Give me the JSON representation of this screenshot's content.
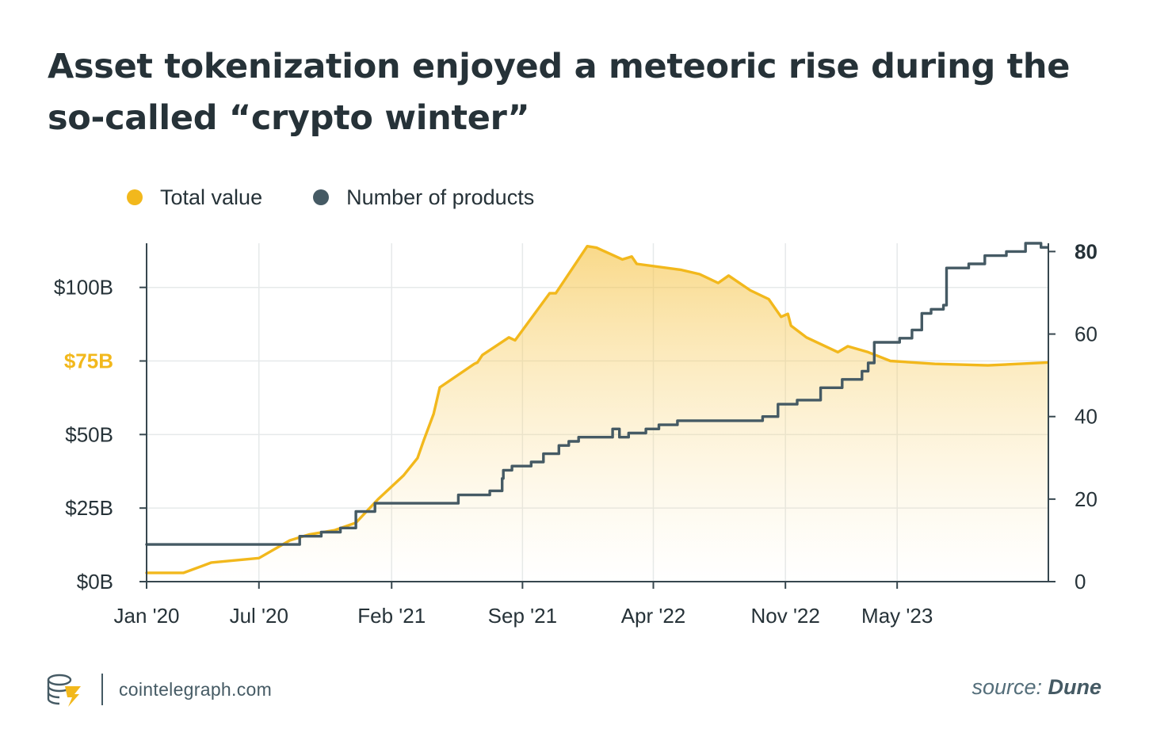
{
  "header": {
    "title": "Asset tokenization enjoyed a meteoric rise during the so-called “crypto winter”"
  },
  "legend": {
    "items": [
      {
        "label": "Total value",
        "color": "#f2b81c"
      },
      {
        "label": "Number of products",
        "color": "#455a64"
      }
    ]
  },
  "footer": {
    "brand": "cointelegraph.com",
    "source_prefix": "source:",
    "source_name": "Dune"
  },
  "chart_data": {
    "type": "line",
    "title": "Asset tokenization enjoyed a meteoric rise during the so-called “crypto winter”",
    "xlabel": "",
    "ylabel": "",
    "x_axis": {
      "type": "date",
      "range": [
        "2020-01-01",
        "2024-01-01"
      ],
      "ticks": [
        {
          "date": "2020-01-01",
          "label": "Jan '20"
        },
        {
          "date": "2020-07-01",
          "label": "Jul '20"
        },
        {
          "date": "2021-02-01",
          "label": "Feb '21"
        },
        {
          "date": "2021-09-01",
          "label": "Sep '21"
        },
        {
          "date": "2022-04-01",
          "label": "Apr '22"
        },
        {
          "date": "2022-11-01",
          "label": "Nov '22"
        },
        {
          "date": "2023-05-01",
          "label": "May '23"
        }
      ]
    },
    "y_left": {
      "range": [
        0,
        115
      ],
      "ticks": [
        {
          "value": 0,
          "label": "$0B"
        },
        {
          "value": 25,
          "label": "$25B"
        },
        {
          "value": 50,
          "label": "$50B"
        },
        {
          "value": 75,
          "label": "$75B",
          "highlight": true
        },
        {
          "value": 100,
          "label": "$100B"
        }
      ],
      "highlight_color": "#f2b81c"
    },
    "y_right": {
      "range": [
        0,
        82
      ],
      "ticks": [
        {
          "value": 0,
          "label": "0"
        },
        {
          "value": 20,
          "label": "20"
        },
        {
          "value": 40,
          "label": "40"
        },
        {
          "value": 60,
          "label": "60"
        },
        {
          "value": 80,
          "label": "80",
          "bold": true
        }
      ]
    },
    "grid": true,
    "legend_position": "top-left",
    "series": [
      {
        "name": "Total value",
        "axis": "left",
        "color": "#f2b81c",
        "fill": true,
        "points": [
          [
            "2020-01-01",
            3
          ],
          [
            "2020-03-01",
            3
          ],
          [
            "2020-04-15",
            6.5
          ],
          [
            "2020-07-01",
            8
          ],
          [
            "2020-08-20",
            14
          ],
          [
            "2020-09-20",
            16
          ],
          [
            "2020-11-01",
            17.5
          ],
          [
            "2020-12-05",
            20
          ],
          [
            "2021-01-10",
            28
          ],
          [
            "2021-02-20",
            36
          ],
          [
            "2021-03-15",
            42
          ],
          [
            "2021-03-25",
            48
          ],
          [
            "2021-04-10",
            57
          ],
          [
            "2021-04-20",
            66
          ],
          [
            "2021-06-15",
            74
          ],
          [
            "2021-06-20",
            74.5
          ],
          [
            "2021-06-28",
            77
          ],
          [
            "2021-08-10",
            83
          ],
          [
            "2021-08-20",
            82
          ],
          [
            "2021-10-15",
            98
          ],
          [
            "2021-10-25",
            98
          ],
          [
            "2021-12-15",
            114
          ],
          [
            "2021-12-30",
            113.5
          ],
          [
            "2022-02-10",
            109.5
          ],
          [
            "2022-02-25",
            110.5
          ],
          [
            "2022-03-05",
            108
          ],
          [
            "2022-05-15",
            106
          ],
          [
            "2022-06-15",
            104.5
          ],
          [
            "2022-07-15",
            101.5
          ],
          [
            "2022-08-01",
            104
          ],
          [
            "2022-09-05",
            99
          ],
          [
            "2022-10-05",
            96
          ],
          [
            "2022-10-25",
            90
          ],
          [
            "2022-11-05",
            91
          ],
          [
            "2022-11-10",
            87
          ],
          [
            "2022-12-05",
            83
          ],
          [
            "2023-01-25",
            78
          ],
          [
            "2023-02-10",
            80
          ],
          [
            "2023-03-15",
            78
          ],
          [
            "2023-04-20",
            75
          ],
          [
            "2023-07-01",
            74
          ],
          [
            "2023-09-25",
            73.5
          ],
          [
            "2023-12-31",
            74.5
          ]
        ]
      },
      {
        "name": "Number of products",
        "axis": "right",
        "color": "#455a64",
        "fill": false,
        "step": true,
        "points": [
          [
            "2020-01-01",
            9
          ],
          [
            "2020-08-15",
            9
          ],
          [
            "2020-09-05",
            11
          ],
          [
            "2020-09-25",
            11
          ],
          [
            "2020-10-10",
            12
          ],
          [
            "2020-11-10",
            13
          ],
          [
            "2020-12-05",
            17
          ],
          [
            "2020-12-20",
            17
          ],
          [
            "2021-01-05",
            19
          ],
          [
            "2021-05-10",
            19
          ],
          [
            "2021-05-20",
            21
          ],
          [
            "2021-07-05",
            21
          ],
          [
            "2021-07-10",
            22
          ],
          [
            "2021-07-20",
            22
          ],
          [
            "2021-07-30",
            25
          ],
          [
            "2021-08-01",
            27
          ],
          [
            "2021-08-10",
            27
          ],
          [
            "2021-08-15",
            28
          ],
          [
            "2021-09-10",
            28
          ],
          [
            "2021-09-15",
            29
          ],
          [
            "2021-09-30",
            29
          ],
          [
            "2021-10-05",
            31
          ],
          [
            "2021-10-25",
            31
          ],
          [
            "2021-10-30",
            33
          ],
          [
            "2021-11-15",
            34
          ],
          [
            "2021-12-01",
            35
          ],
          [
            "2022-01-15",
            35
          ],
          [
            "2022-01-25",
            37
          ],
          [
            "2022-02-05",
            35
          ],
          [
            "2022-02-12",
            35
          ],
          [
            "2022-02-20",
            36
          ],
          [
            "2022-03-05",
            36
          ],
          [
            "2022-03-20",
            37
          ],
          [
            "2022-04-10",
            38
          ],
          [
            "2022-05-01",
            38
          ],
          [
            "2022-05-10",
            39
          ],
          [
            "2022-09-20",
            39
          ],
          [
            "2022-09-25",
            40
          ],
          [
            "2022-10-15",
            40
          ],
          [
            "2022-10-20",
            43
          ],
          [
            "2022-11-10",
            43
          ],
          [
            "2022-11-20",
            44
          ],
          [
            "2022-12-15",
            44
          ],
          [
            "2022-12-28",
            47
          ],
          [
            "2023-02-01",
            49
          ],
          [
            "2023-03-05",
            51
          ],
          [
            "2023-03-15",
            53
          ],
          [
            "2023-03-25",
            58
          ],
          [
            "2023-04-25",
            58
          ],
          [
            "2023-05-05",
            59
          ],
          [
            "2023-05-25",
            61
          ],
          [
            "2023-06-10",
            65
          ],
          [
            "2023-06-25",
            66
          ],
          [
            "2023-07-15",
            67
          ],
          [
            "2023-07-20",
            76
          ],
          [
            "2023-08-25",
            77
          ],
          [
            "2023-09-20",
            79
          ],
          [
            "2023-10-25",
            80
          ],
          [
            "2023-11-25",
            82
          ],
          [
            "2023-12-20",
            81
          ],
          [
            "2023-12-31",
            81
          ]
        ]
      }
    ]
  }
}
